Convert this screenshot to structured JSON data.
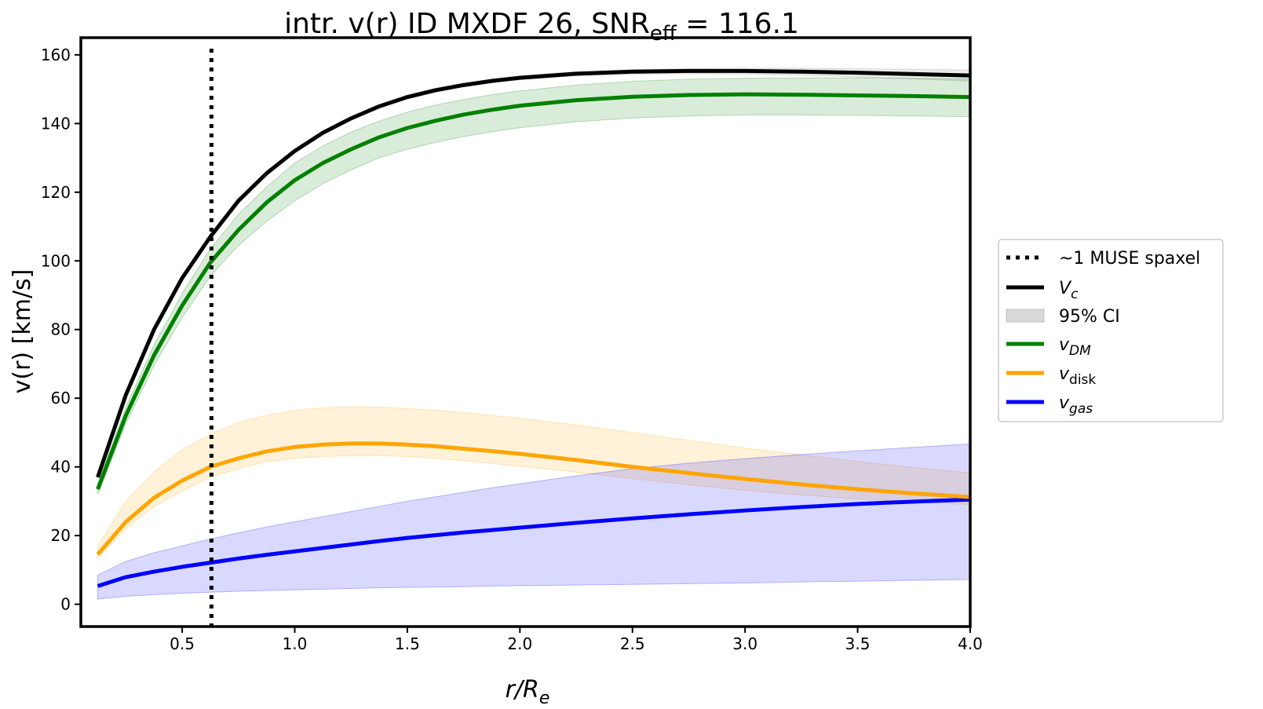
{
  "chart_data": {
    "type": "line",
    "title": {
      "prefix": "intr. v(r) ID MXDF 26, SNR",
      "subscript": "eff",
      "suffix": " = 116.1"
    },
    "xlabel": {
      "main": "r/R",
      "subscript": "e"
    },
    "ylabel": "v(r) [km/s]",
    "xlim": [
      0.05,
      4.0
    ],
    "ylim": [
      -6.5,
      165
    ],
    "xticks": [
      0.5,
      1.0,
      1.5,
      2.0,
      2.5,
      3.0,
      3.5,
      4.0
    ],
    "xtick_labels": [
      "0.5",
      "1.0",
      "1.5",
      "2.0",
      "2.5",
      "3.0",
      "3.5",
      "4.0"
    ],
    "yticks": [
      0,
      20,
      40,
      60,
      80,
      100,
      120,
      140,
      160
    ],
    "ytick_labels": [
      "0",
      "20",
      "40",
      "60",
      "80",
      "100",
      "120",
      "140",
      "160"
    ],
    "grid": false,
    "legend_position": "outside-right",
    "vline": {
      "x": 0.63,
      "label": "~1 MUSE spaxel",
      "style": "dotted",
      "color": "#000000"
    },
    "x": [
      0.125,
      0.25,
      0.375,
      0.5,
      0.625,
      0.75,
      0.875,
      1.0,
      1.125,
      1.25,
      1.375,
      1.5,
      1.625,
      1.75,
      1.875,
      2.0,
      2.25,
      2.5,
      2.75,
      3.0,
      3.25,
      3.5,
      3.75,
      4.0
    ],
    "series": [
      {
        "name": "V",
        "name_subscript": "c",
        "italic": true,
        "color": "#000000",
        "values": [
          37,
          61,
          80,
          95,
          107,
          117.5,
          125.5,
          132,
          137.3,
          141.5,
          145,
          147.7,
          149.7,
          151.2,
          152.4,
          153.3,
          154.5,
          155.1,
          155.3,
          155.3,
          155.1,
          154.8,
          154.4,
          154
        ],
        "ci_lower": [
          36.5,
          60.5,
          79.5,
          94.5,
          106.5,
          117,
          125,
          131.5,
          136.8,
          141,
          144.5,
          147.2,
          149.2,
          150.7,
          151.9,
          152.8,
          153.9,
          154.4,
          154.5,
          154.4,
          154.1,
          153.6,
          153,
          152.3
        ],
        "ci_upper": [
          37.5,
          61.5,
          80.5,
          95.5,
          107.5,
          118,
          126,
          132.5,
          137.8,
          142,
          145.5,
          148.3,
          150.3,
          151.8,
          153,
          153.9,
          155.1,
          155.7,
          156,
          156.1,
          156.1,
          156,
          155.8,
          155.6
        ]
      },
      {
        "name": "v",
        "name_subscript": "DM",
        "italic": true,
        "color": "#008000",
        "values": [
          33.5,
          55,
          72.5,
          87,
          99.5,
          109,
          117,
          123.5,
          128.5,
          132.5,
          136,
          138.7,
          140.8,
          142.6,
          144,
          145.2,
          146.8,
          147.8,
          148.3,
          148.5,
          148.4,
          148.2,
          148,
          147.7
        ],
        "ci_lower": [
          32,
          52.5,
          69.5,
          83.5,
          95.5,
          104.5,
          111.5,
          117.5,
          122.5,
          126.5,
          130,
          132.5,
          134.5,
          136.2,
          137.6,
          138.8,
          140.5,
          141.6,
          142.2,
          142.5,
          142.5,
          142.4,
          142.2,
          142
        ],
        "ci_upper": [
          35,
          57.5,
          75.5,
          90.5,
          103.5,
          113.5,
          121.5,
          128.5,
          133.5,
          137.5,
          140.7,
          143.3,
          145.4,
          147,
          148.4,
          149.5,
          151.2,
          152.3,
          152.9,
          153.2,
          153.3,
          153.3,
          153.2,
          153
        ]
      },
      {
        "name": "v",
        "name_subscript": "disk",
        "italic": true,
        "color": "#FFA500",
        "values": [
          14.5,
          24,
          31,
          36,
          40,
          42.5,
          44.5,
          45.8,
          46.5,
          46.8,
          46.8,
          46.5,
          46,
          45.3,
          44.6,
          43.8,
          42,
          40,
          38.2,
          36.5,
          34.9,
          33.5,
          32.3,
          31.2
        ],
        "ci_lower": [
          13.5,
          22,
          28.5,
          33,
          37,
          39.5,
          41.5,
          42.5,
          43,
          43.3,
          43.3,
          43,
          42.5,
          41.8,
          41,
          40.2,
          38.5,
          36.6,
          34.8,
          33.2,
          31.8,
          30.7,
          29.8,
          29
        ],
        "ci_upper": [
          17,
          30,
          38.5,
          45,
          49.5,
          53,
          55,
          56.5,
          57.2,
          57.5,
          57.4,
          57,
          56.5,
          55.8,
          55,
          54.2,
          52.2,
          50,
          47.7,
          45.5,
          43.5,
          41.6,
          39.8,
          38.3
        ]
      },
      {
        "name": "v",
        "name_subscript": "gas",
        "italic": true,
        "color": "#0000FF",
        "values": [
          5.3,
          7.9,
          9.5,
          10.9,
          12.1,
          13.3,
          14.4,
          15.4,
          16.4,
          17.4,
          18.4,
          19.3,
          20.1,
          20.9,
          21.6,
          22.3,
          23.7,
          25,
          26.2,
          27.3,
          28.3,
          29.2,
          29.9,
          30.5
        ],
        "ci_lower": [
          1.5,
          2.3,
          2.8,
          3.2,
          3.5,
          3.8,
          4,
          4.2,
          4.4,
          4.6,
          4.8,
          4.9,
          5,
          5.1,
          5.3,
          5.4,
          5.6,
          5.8,
          6,
          6.2,
          6.5,
          6.7,
          7,
          7.2
        ],
        "ci_upper": [
          8.5,
          12.5,
          15,
          17,
          19,
          20.8,
          22.5,
          24,
          25.5,
          27,
          28.5,
          30,
          31.3,
          32.6,
          33.9,
          35.1,
          37.4,
          39.5,
          41.1,
          42.4,
          43.6,
          44.7,
          45.7,
          46.7
        ]
      }
    ],
    "legend": [
      {
        "kind": "vline",
        "label": "~1 MUSE spaxel"
      },
      {
        "kind": "series",
        "series_index": 0
      },
      {
        "kind": "band",
        "label": "95% CI",
        "color": "#808080"
      },
      {
        "kind": "series",
        "series_index": 1
      },
      {
        "kind": "series",
        "series_index": 2
      },
      {
        "kind": "series",
        "series_index": 3
      }
    ]
  }
}
